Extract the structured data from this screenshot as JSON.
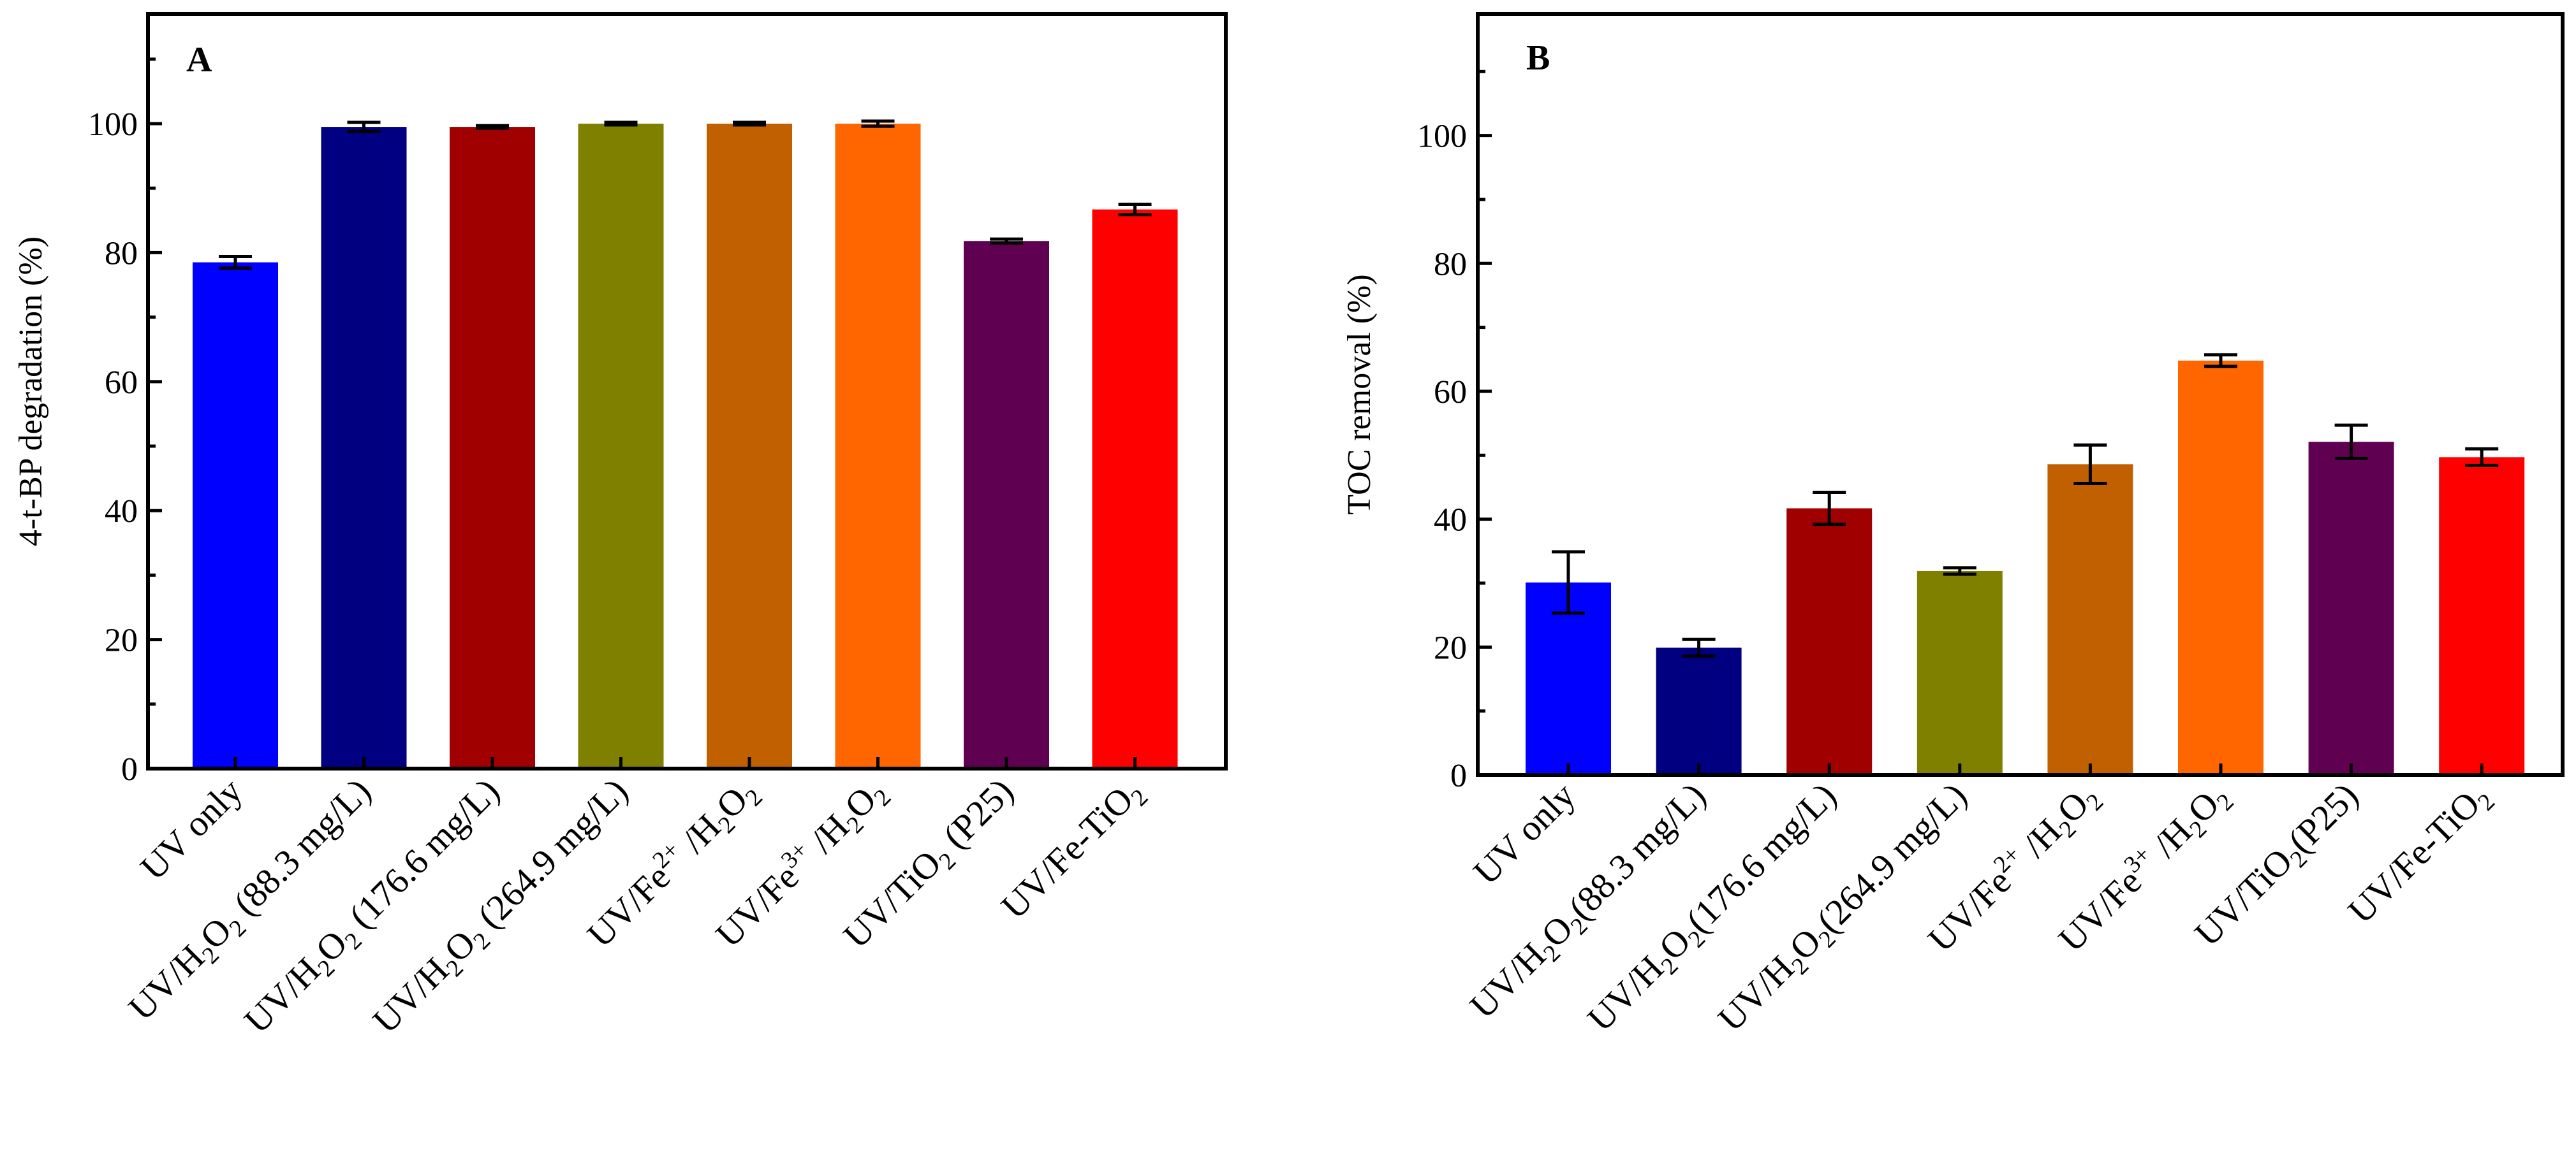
{
  "chart_data": [
    {
      "panel": "A",
      "type": "bar",
      "title": "",
      "xlabel": "",
      "ylabel": "4-t-BP degradation (%)",
      "ylim": [
        0,
        117
      ],
      "yticks": [
        0,
        20,
        40,
        60,
        80,
        100
      ],
      "grid": false,
      "categories": [
        [
          {
            "t": "UV only"
          }
        ],
        [
          {
            "t": "UV/H"
          },
          {
            "t": "2",
            "s": "sub"
          },
          {
            "t": "O"
          },
          {
            "t": "2",
            "s": "sub"
          },
          {
            "t": " (88.3 mg/L)"
          }
        ],
        [
          {
            "t": "UV/H"
          },
          {
            "t": "2",
            "s": "sub"
          },
          {
            "t": "O"
          },
          {
            "t": "2",
            "s": "sub"
          },
          {
            "t": " (176.6 mg/L)"
          }
        ],
        [
          {
            "t": "UV/H"
          },
          {
            "t": "2",
            "s": "sub"
          },
          {
            "t": "O"
          },
          {
            "t": "2",
            "s": "sub"
          },
          {
            "t": " (264.9 mg/L)"
          }
        ],
        [
          {
            "t": "UV/Fe"
          },
          {
            "t": "2+",
            "s": "sup"
          },
          {
            "t": " /H"
          },
          {
            "t": "2",
            "s": "sub"
          },
          {
            "t": "O"
          },
          {
            "t": "2",
            "s": "sub"
          }
        ],
        [
          {
            "t": "UV/Fe"
          },
          {
            "t": "3+",
            "s": "sup"
          },
          {
            "t": " /H"
          },
          {
            "t": "2",
            "s": "sub"
          },
          {
            "t": "O"
          },
          {
            "t": "2",
            "s": "sub"
          }
        ],
        [
          {
            "t": "UV/TiO"
          },
          {
            "t": "2",
            "s": "sub"
          },
          {
            "t": " (P25)"
          }
        ],
        [
          {
            "t": "UV/Fe-TiO"
          },
          {
            "t": "2",
            "s": "sub"
          }
        ]
      ],
      "values": [
        78.5,
        99.5,
        99.5,
        100,
        100,
        100,
        81.8,
        86.7
      ],
      "errors": [
        0.9,
        0.7,
        0.2,
        0.2,
        0.2,
        0.4,
        0.3,
        0.8
      ],
      "colors": [
        "#0000ff",
        "#000080",
        "#a00000",
        "#808000",
        "#c06000",
        "#ff6600",
        "#600050",
        "#ff0000"
      ]
    },
    {
      "panel": "B",
      "type": "bar",
      "title": "",
      "xlabel": "",
      "ylabel": "TOC removal (%)",
      "ylim": [
        0,
        119
      ],
      "yticks": [
        0,
        20,
        40,
        60,
        80,
        100
      ],
      "grid": false,
      "categories": [
        [
          {
            "t": "UV only"
          }
        ],
        [
          {
            "t": "UV/H"
          },
          {
            "t": "2",
            "s": "sub"
          },
          {
            "t": "O"
          },
          {
            "t": "2",
            "s": "sub"
          },
          {
            "t": "(88.3 mg/L)"
          }
        ],
        [
          {
            "t": "UV/H"
          },
          {
            "t": "2",
            "s": "sub"
          },
          {
            "t": "O"
          },
          {
            "t": "2",
            "s": "sub"
          },
          {
            "t": "(176.6 mg/L)"
          }
        ],
        [
          {
            "t": "UV/H"
          },
          {
            "t": "2",
            "s": "sub"
          },
          {
            "t": "O"
          },
          {
            "t": "2",
            "s": "sub"
          },
          {
            "t": "(264.9 mg/L)"
          }
        ],
        [
          {
            "t": "UV/Fe"
          },
          {
            "t": "2+",
            "s": "sup"
          },
          {
            "t": " /H"
          },
          {
            "t": "2",
            "s": "sub"
          },
          {
            "t": "O"
          },
          {
            "t": "2",
            "s": "sub"
          }
        ],
        [
          {
            "t": "UV/Fe"
          },
          {
            "t": "3+",
            "s": "sup"
          },
          {
            "t": " /H"
          },
          {
            "t": "2",
            "s": "sub"
          },
          {
            "t": "O"
          },
          {
            "t": "2",
            "s": "sub"
          }
        ],
        [
          {
            "t": "UV/TiO"
          },
          {
            "t": "2",
            "s": "sub"
          },
          {
            "t": "(P25)"
          }
        ],
        [
          {
            "t": "UV/Fe-TiO"
          },
          {
            "t": "2",
            "s": "sub"
          }
        ]
      ],
      "values": [
        30.1,
        19.9,
        41.7,
        31.9,
        48.6,
        64.8,
        52.1,
        49.7
      ],
      "errors": [
        4.8,
        1.3,
        2.5,
        0.5,
        3.0,
        0.9,
        2.6,
        1.3
      ],
      "colors": [
        "#0000ff",
        "#000080",
        "#a00000",
        "#808000",
        "#c06000",
        "#ff6600",
        "#600050",
        "#ff0000"
      ]
    }
  ]
}
